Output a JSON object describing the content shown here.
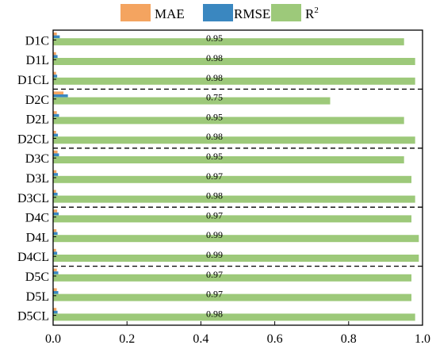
{
  "chart_data": {
    "type": "bar",
    "orientation": "horizontal",
    "categories": [
      "D1C",
      "D1L",
      "D1CL",
      "D2C",
      "D2L",
      "D2CL",
      "D3C",
      "D3L",
      "D3CL",
      "D4C",
      "D4L",
      "D4CL",
      "D5C",
      "D5L",
      "D5CL"
    ],
    "series": [
      {
        "name": "MAE",
        "color": "#f4a460",
        "values": [
          0.01,
          0.008,
          0.008,
          0.028,
          0.01,
          0.008,
          0.012,
          0.009,
          0.008,
          0.011,
          0.009,
          0.008,
          0.01,
          0.01,
          0.009
        ]
      },
      {
        "name": "RMSE",
        "color": "#3a87c0",
        "values": [
          0.018,
          0.012,
          0.011,
          0.04,
          0.016,
          0.013,
          0.016,
          0.013,
          0.012,
          0.015,
          0.012,
          0.011,
          0.014,
          0.014,
          0.012
        ]
      },
      {
        "name": "R2",
        "color": "#9dc97a",
        "values": [
          0.95,
          0.98,
          0.98,
          0.75,
          0.95,
          0.98,
          0.95,
          0.97,
          0.98,
          0.97,
          0.99,
          0.99,
          0.97,
          0.97,
          0.98
        ]
      }
    ],
    "data_labels": [
      "0.95",
      "0.98",
      "0.98",
      "0.75",
      "0.95",
      "0.98",
      "0.95",
      "0.97",
      "0.98",
      "0.97",
      "0.99",
      "0.99",
      "0.97",
      "0.97",
      "0.98"
    ],
    "legend": {
      "position": "top",
      "entries": [
        "MAE",
        "RMSE",
        "R²"
      ]
    },
    "xlim": [
      0,
      1.0
    ],
    "xticks": [
      0.0,
      0.2,
      0.4,
      0.6,
      0.8,
      1.0
    ],
    "xtick_labels": [
      "0.0",
      "0.2",
      "0.4",
      "0.6",
      "0.8",
      "1.0"
    ],
    "group_separators_after": [
      "D1CL",
      "D2CL",
      "D3CL",
      "D4CL"
    ],
    "grid": false
  }
}
